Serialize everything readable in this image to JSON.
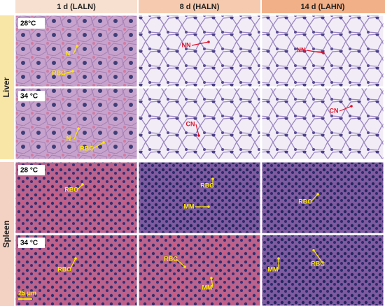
{
  "columns": [
    "1 d (LALN)",
    "8 d (HALN)",
    "14 d (LAHN)"
  ],
  "rows": [
    {
      "label": "Liver",
      "sub_rows": [
        {
          "condition": "28°C",
          "panels": [
            [
              "N",
              "RBC"
            ],
            [
              "NN"
            ],
            [
              "NN"
            ]
          ]
        },
        {
          "condition": "34 °C",
          "panels": [
            [
              "N",
              "RBC"
            ],
            [
              "CN"
            ],
            [
              "CN"
            ]
          ]
        }
      ]
    },
    {
      "label": "Spleen",
      "sub_rows": [
        {
          "condition": "28 °C",
          "panels": [
            [
              "RBC"
            ],
            [
              "RBC",
              "MM"
            ],
            [
              "RBC"
            ]
          ]
        },
        {
          "condition": "34 °C",
          "panels": [
            [
              "RBC"
            ],
            [
              "RBC",
              "MM"
            ],
            [
              "MM",
              "RBC"
            ]
          ]
        }
      ]
    }
  ],
  "scale_bar": "25 μm"
}
